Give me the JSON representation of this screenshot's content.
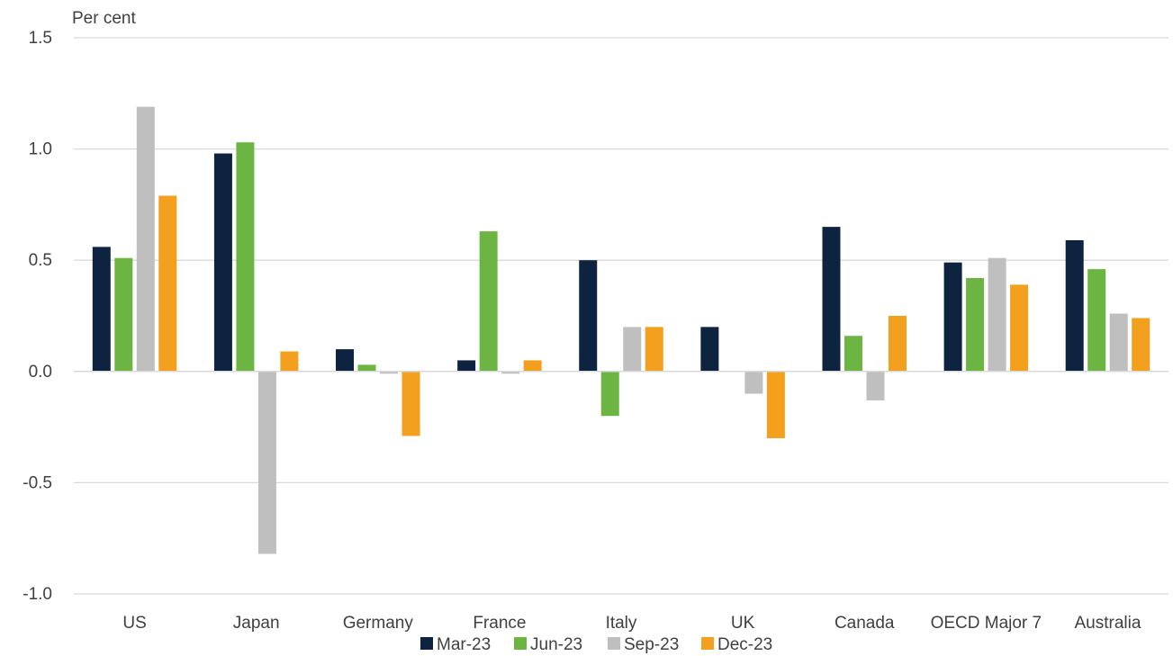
{
  "chart_data": {
    "type": "bar",
    "ylabel": "Per cent",
    "ylim": [
      -1.0,
      1.5
    ],
    "yticks": [
      1.5,
      1.0,
      0.5,
      0.0,
      -0.5,
      -1.0
    ],
    "ytick_labels": [
      "1.5",
      "1.0",
      "0.5",
      "0.0",
      "-0.5",
      "-1.0"
    ],
    "grid": true,
    "legend_position": "bottom",
    "categories": [
      "US",
      "Japan",
      "Germany",
      "France",
      "Italy",
      "UK",
      "Canada",
      "OECD Major 7",
      "Australia"
    ],
    "series": [
      {
        "name": "Mar-23",
        "color": "#0e2340",
        "values": [
          0.56,
          0.98,
          0.1,
          0.05,
          0.5,
          0.2,
          0.65,
          0.49,
          0.59
        ]
      },
      {
        "name": "Jun-23",
        "color": "#6db543",
        "values": [
          0.51,
          1.03,
          0.03,
          0.63,
          -0.2,
          0.0,
          0.16,
          0.42,
          0.46
        ]
      },
      {
        "name": "Sep-23",
        "color": "#bfbfbf",
        "values": [
          1.19,
          -0.82,
          -0.01,
          -0.01,
          0.2,
          -0.1,
          -0.13,
          0.51,
          0.26
        ]
      },
      {
        "name": "Dec-23",
        "color": "#f2a01d",
        "values": [
          0.79,
          0.09,
          -0.29,
          0.05,
          0.2,
          -0.3,
          0.25,
          0.39,
          0.24
        ]
      }
    ]
  }
}
